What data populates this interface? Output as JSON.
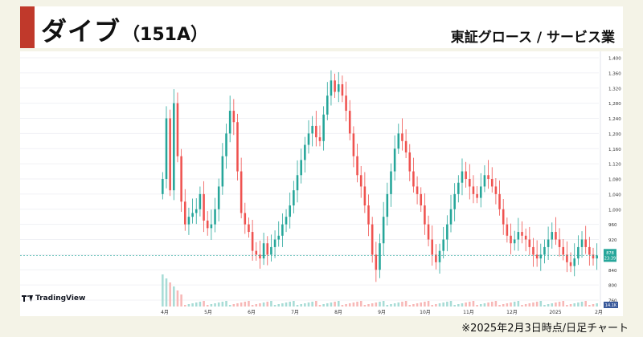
{
  "header": {
    "company_name": "ダイブ",
    "stock_code": "（151A）",
    "market_sector": "東証グロース / サービス業"
  },
  "footnote": "※2025年2月3日時点/日足チャート",
  "watermark": "TradingView",
  "colors": {
    "accent": "#c0392b",
    "up": "#26a69a",
    "down": "#ef5350",
    "page_bg": "#f4f3e7"
  },
  "chart_data": {
    "type": "candlestick",
    "title": "",
    "ylim": [
      760,
      1400
    ],
    "y_ticks": [
      "1,400",
      "1,360",
      "1,320",
      "1,280",
      "1,240",
      "1,200",
      "1,160",
      "1,120",
      "1,080",
      "1,040",
      "1,000",
      "960",
      "920",
      "880",
      "840",
      "800",
      "760"
    ],
    "x_ticks": [
      "4月",
      "5月",
      "6月",
      "7月",
      "8月",
      "9月",
      "10月",
      "11月",
      "12月",
      "2025",
      "2月"
    ],
    "last_price": {
      "value": 878,
      "label": "878",
      "timer": "23:39"
    },
    "volume_label": "14.1K",
    "series": [
      {
        "name": "close",
        "values": [
          1080,
          1240,
          1050,
          1280,
          1140,
          1020,
          960,
          980,
          990,
          1000,
          1040,
          970,
          950,
          960,
          1000,
          1060,
          1140,
          1200,
          1260,
          1230,
          1100,
          990,
          960,
          940,
          890,
          880,
          870,
          910,
          880,
          900,
          920,
          930,
          960,
          980,
          1010,
          1050,
          1090,
          1130,
          1170,
          1200,
          1220,
          1190,
          1180,
          1250,
          1300,
          1340,
          1310,
          1330,
          1300,
          1260,
          1200,
          1140,
          1090,
          1060,
          1010,
          960,
          880,
          840,
          910,
          980,
          1040,
          1100,
          1160,
          1200,
          1180,
          1150,
          1100,
          1060,
          1040,
          1010,
          960,
          920,
          880,
          860,
          890,
          920,
          960,
          1000,
          1040,
          1070,
          1100,
          1080,
          1060,
          1040,
          1030,
          1060,
          1090,
          1080,
          1060,
          1040,
          1000,
          960,
          930,
          910,
          920,
          940,
          930,
          920,
          900,
          880,
          870,
          880,
          900,
          920,
          940,
          920,
          900,
          880,
          860,
          850,
          870,
          900,
          920,
          900,
          880,
          870,
          878
        ]
      }
    ]
  }
}
